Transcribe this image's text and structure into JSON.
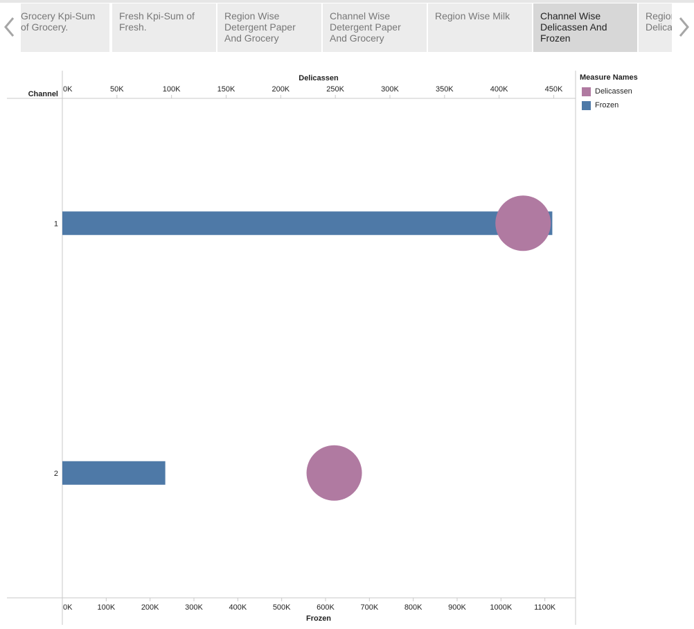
{
  "tabs": [
    {
      "label": "Grocery Kpi-Sum of Grocery.",
      "active": false
    },
    {
      "label": "Fresh Kpi-Sum of Fresh.",
      "active": false
    },
    {
      "label": "Region Wise Detergent Paper And Grocery",
      "active": false
    },
    {
      "label": "Channel Wise Detergent Paper And Grocery",
      "active": false
    },
    {
      "label": "Region Wise Milk",
      "active": false
    },
    {
      "label": "Channel Wise Delicassen And Frozen",
      "active": true
    },
    {
      "label": "Region Wise Delicassen",
      "active": false
    }
  ],
  "icons": {
    "prev": "chevron-left-icon",
    "next": "chevron-right-icon"
  },
  "legend": {
    "title": "Measure Names",
    "items": [
      {
        "label": "Delicassen",
        "color": "#b07aa1"
      },
      {
        "label": "Frozen",
        "color": "#4e79a7"
      }
    ]
  },
  "chart_data": {
    "type": "bar",
    "row_header": "Channel",
    "categories": [
      "1",
      "2"
    ],
    "top_axis": {
      "title": "Delicassen",
      "range": [
        0,
        470000
      ],
      "ticks": [
        0,
        50000,
        100000,
        150000,
        200000,
        250000,
        300000,
        350000,
        400000,
        450000
      ],
      "tick_labels": [
        "0K",
        "50K",
        "100K",
        "150K",
        "200K",
        "250K",
        "300K",
        "350K",
        "400K",
        "450K"
      ]
    },
    "bottom_axis": {
      "title": "Frozen",
      "range": [
        0,
        1170000
      ],
      "ticks": [
        0,
        100000,
        200000,
        300000,
        400000,
        500000,
        600000,
        700000,
        800000,
        900000,
        1000000,
        1100000
      ],
      "tick_labels": [
        "0K",
        "100K",
        "200K",
        "300K",
        "400K",
        "500K",
        "600K",
        "700K",
        "800K",
        "900K",
        "1000K",
        "1100K"
      ]
    },
    "series": [
      {
        "name": "Frozen",
        "mark": "bar",
        "axis": "bottom",
        "color": "#4e79a7",
        "values": [
          1116979,
          234671
        ]
      },
      {
        "name": "Delicassen",
        "mark": "circle",
        "axis": "top",
        "color": "#b07aa1",
        "values": [
          421955,
          248988
        ]
      }
    ],
    "grid": false,
    "legend_position": "right"
  }
}
